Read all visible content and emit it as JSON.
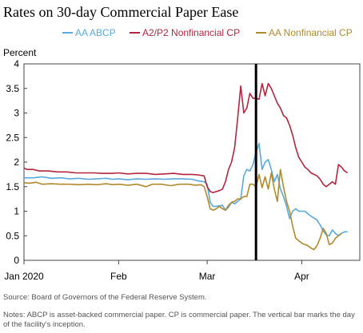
{
  "chart_data": {
    "type": "line",
    "title": "Rates on 30-day Commercial Paper Ease",
    "ylabel": "Percent",
    "ylim": [
      0,
      4
    ],
    "yticks": [
      "0",
      "0.5",
      "1",
      "1.5",
      "2",
      "2.5",
      "3",
      "3.5",
      "4"
    ],
    "xticks": [
      {
        "label": "Jan 2020",
        "day": 0
      },
      {
        "label": "Feb",
        "day": 31
      },
      {
        "label": "Mar",
        "day": 60
      },
      {
        "label": "Apr",
        "day": 91
      }
    ],
    "xlim_days": [
      0,
      110
    ],
    "vertical_marker_day": 76,
    "legend_position": "top",
    "grid": false,
    "series": [
      {
        "name": "AA ABCP",
        "color": "#5aa9dd",
        "points": [
          [
            0,
            1.68
          ],
          [
            3,
            1.68
          ],
          [
            6,
            1.7
          ],
          [
            9,
            1.67
          ],
          [
            12,
            1.68
          ],
          [
            15,
            1.66
          ],
          [
            18,
            1.67
          ],
          [
            21,
            1.65
          ],
          [
            24,
            1.66
          ],
          [
            27,
            1.67
          ],
          [
            29,
            1.65
          ],
          [
            31,
            1.66
          ],
          [
            34,
            1.64
          ],
          [
            37,
            1.66
          ],
          [
            40,
            1.65
          ],
          [
            43,
            1.66
          ],
          [
            46,
            1.65
          ],
          [
            49,
            1.66
          ],
          [
            52,
            1.66
          ],
          [
            55,
            1.65
          ],
          [
            57,
            1.62
          ],
          [
            59,
            1.6
          ],
          [
            60,
            1.55
          ],
          [
            61,
            1.18
          ],
          [
            62,
            1.1
          ],
          [
            63,
            1.1
          ],
          [
            65,
            1.12
          ],
          [
            66,
            1.02
          ],
          [
            67,
            1.08
          ],
          [
            68,
            1.18
          ],
          [
            69,
            1.15
          ],
          [
            70,
            1.2
          ],
          [
            71,
            1.25
          ],
          [
            72,
            1.72
          ],
          [
            73,
            1.85
          ],
          [
            74,
            1.82
          ],
          [
            75,
            1.95
          ],
          [
            76,
            2.2
          ],
          [
            77,
            2.38
          ],
          [
            78,
            1.85
          ],
          [
            79,
            2.0
          ],
          [
            80,
            2.05
          ],
          [
            81,
            1.85
          ],
          [
            82,
            1.6
          ],
          [
            83,
            1.75
          ],
          [
            84,
            1.45
          ],
          [
            85,
            1.3
          ],
          [
            86,
            1.1
          ],
          [
            87,
            0.85
          ],
          [
            88,
            1.0
          ],
          [
            89,
            1.05
          ],
          [
            90,
            1.0
          ],
          [
            91,
            1.0
          ],
          [
            92,
            1.0
          ],
          [
            93,
            0.95
          ],
          [
            94,
            0.9
          ],
          [
            96,
            0.82
          ],
          [
            97,
            0.72
          ],
          [
            98,
            0.6
          ],
          [
            99,
            0.52
          ],
          [
            100,
            0.5
          ],
          [
            101,
            0.62
          ],
          [
            102,
            0.55
          ],
          [
            103,
            0.5
          ],
          [
            104,
            0.55
          ],
          [
            105,
            0.58
          ],
          [
            106,
            0.58
          ]
        ]
      },
      {
        "name": "A2/P2 Nonfinancial CP",
        "color": "#b3263d",
        "points": [
          [
            0,
            1.88
          ],
          [
            1,
            1.85
          ],
          [
            3,
            1.85
          ],
          [
            5,
            1.82
          ],
          [
            8,
            1.82
          ],
          [
            11,
            1.8
          ],
          [
            14,
            1.8
          ],
          [
            17,
            1.78
          ],
          [
            20,
            1.78
          ],
          [
            23,
            1.78
          ],
          [
            26,
            1.77
          ],
          [
            29,
            1.77
          ],
          [
            31,
            1.78
          ],
          [
            34,
            1.76
          ],
          [
            37,
            1.77
          ],
          [
            40,
            1.77
          ],
          [
            43,
            1.75
          ],
          [
            46,
            1.76
          ],
          [
            49,
            1.77
          ],
          [
            52,
            1.75
          ],
          [
            55,
            1.75
          ],
          [
            57,
            1.74
          ],
          [
            59,
            1.72
          ],
          [
            60,
            1.5
          ],
          [
            61,
            1.4
          ],
          [
            62,
            1.38
          ],
          [
            63,
            1.4
          ],
          [
            64,
            1.42
          ],
          [
            65,
            1.45
          ],
          [
            66,
            1.6
          ],
          [
            67,
            1.85
          ],
          [
            68,
            2.0
          ],
          [
            69,
            2.3
          ],
          [
            70,
            2.9
          ],
          [
            71,
            3.55
          ],
          [
            72,
            3.0
          ],
          [
            73,
            3.1
          ],
          [
            74,
            3.4
          ],
          [
            75,
            3.3
          ],
          [
            76,
            3.3
          ],
          [
            77,
            3.28
          ],
          [
            78,
            3.6
          ],
          [
            79,
            3.35
          ],
          [
            80,
            3.6
          ],
          [
            81,
            3.5
          ],
          [
            82,
            3.35
          ],
          [
            83,
            3.2
          ],
          [
            84,
            3.1
          ],
          [
            85,
            2.95
          ],
          [
            86,
            2.9
          ],
          [
            87,
            2.75
          ],
          [
            88,
            2.55
          ],
          [
            89,
            2.3
          ],
          [
            90,
            2.1
          ],
          [
            91,
            2.0
          ],
          [
            92,
            1.9
          ],
          [
            93,
            1.85
          ],
          [
            94,
            1.78
          ],
          [
            96,
            1.72
          ],
          [
            97,
            1.65
          ],
          [
            98,
            1.55
          ],
          [
            99,
            1.5
          ],
          [
            100,
            1.55
          ],
          [
            101,
            1.6
          ],
          [
            102,
            1.55
          ],
          [
            103,
            1.95
          ],
          [
            104,
            1.9
          ],
          [
            105,
            1.82
          ],
          [
            106,
            1.78
          ]
        ]
      },
      {
        "name": "AA Nonfinancial CP",
        "color": "#b08a2e",
        "points": [
          [
            0,
            1.58
          ],
          [
            2,
            1.57
          ],
          [
            4,
            1.59
          ],
          [
            6,
            1.55
          ],
          [
            9,
            1.56
          ],
          [
            12,
            1.55
          ],
          [
            15,
            1.55
          ],
          [
            18,
            1.54
          ],
          [
            21,
            1.55
          ],
          [
            24,
            1.54
          ],
          [
            27,
            1.56
          ],
          [
            29,
            1.54
          ],
          [
            31,
            1.55
          ],
          [
            34,
            1.53
          ],
          [
            37,
            1.55
          ],
          [
            40,
            1.5
          ],
          [
            42,
            1.55
          ],
          [
            45,
            1.55
          ],
          [
            48,
            1.52
          ],
          [
            51,
            1.55
          ],
          [
            54,
            1.55
          ],
          [
            56,
            1.53
          ],
          [
            58,
            1.54
          ],
          [
            59,
            1.5
          ],
          [
            60,
            1.3
          ],
          [
            61,
            1.05
          ],
          [
            62,
            1.02
          ],
          [
            63,
            1.05
          ],
          [
            64,
            1.1
          ],
          [
            65,
            1.05
          ],
          [
            66,
            1.02
          ],
          [
            67,
            1.12
          ],
          [
            68,
            1.18
          ],
          [
            69,
            1.2
          ],
          [
            70,
            1.25
          ],
          [
            71,
            1.25
          ],
          [
            72,
            1.3
          ],
          [
            73,
            1.3
          ],
          [
            74,
            1.55
          ],
          [
            75,
            1.55
          ],
          [
            76,
            1.5
          ],
          [
            77,
            1.75
          ],
          [
            78,
            1.48
          ],
          [
            79,
            1.7
          ],
          [
            80,
            1.45
          ],
          [
            81,
            1.78
          ],
          [
            82,
            1.45
          ],
          [
            83,
            1.2
          ],
          [
            84,
            1.85
          ],
          [
            85,
            1.5
          ],
          [
            86,
            1.2
          ],
          [
            87,
            1.0
          ],
          [
            88,
            0.7
          ],
          [
            89,
            0.45
          ],
          [
            90,
            0.4
          ],
          [
            91,
            0.35
          ],
          [
            92,
            0.32
          ],
          [
            93,
            0.3
          ],
          [
            94,
            0.25
          ],
          [
            95,
            0.22
          ],
          [
            96,
            0.3
          ],
          [
            97,
            0.45
          ],
          [
            98,
            0.65
          ],
          [
            99,
            0.55
          ],
          [
            100,
            0.32
          ],
          [
            101,
            0.35
          ],
          [
            102,
            0.45
          ],
          [
            103,
            0.5
          ],
          [
            104,
            0.55
          ]
        ]
      }
    ]
  },
  "source_text": "Source: Board of Governors of the Federal Reserve System.",
  "notes_text": "Notes: ABCP is asset-backed commercial paper. CP is commercial paper. The vertical bar marks the day of the facility's inception."
}
